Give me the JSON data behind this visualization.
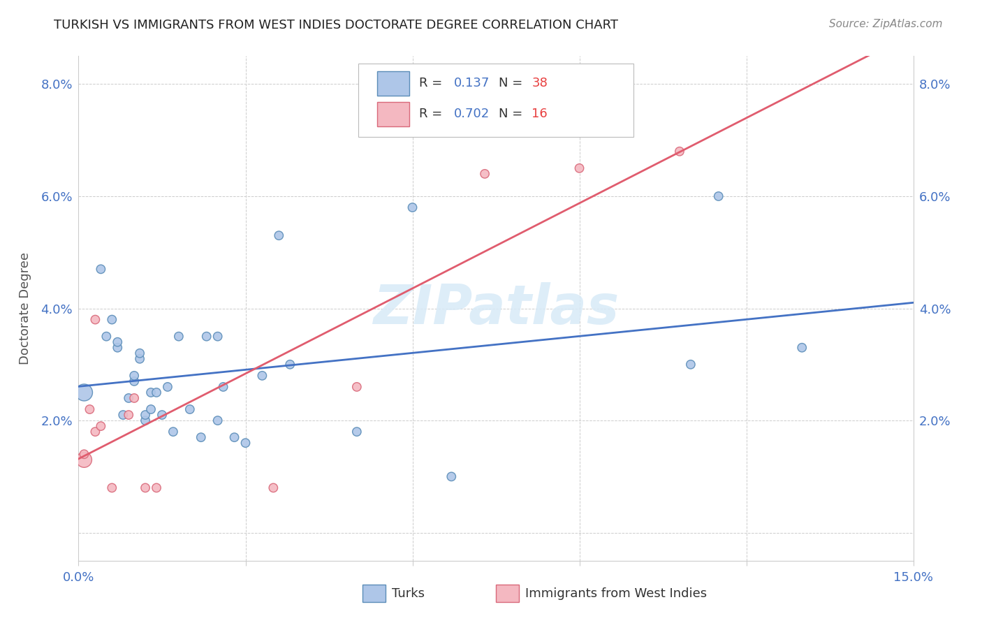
{
  "title": "TURKISH VS IMMIGRANTS FROM WEST INDIES DOCTORATE DEGREE CORRELATION CHART",
  "source": "Source: ZipAtlas.com",
  "ylabel": "Doctorate Degree",
  "xlim": [
    0.0,
    0.15
  ],
  "ylim": [
    -0.005,
    0.085
  ],
  "xticks": [
    0.0,
    0.03,
    0.06,
    0.09,
    0.12,
    0.15
  ],
  "xticklabels": [
    "0.0%",
    "",
    "",
    "",
    "",
    "15.0%"
  ],
  "yticks": [
    0.0,
    0.02,
    0.04,
    0.06,
    0.08
  ],
  "yticklabels": [
    "",
    "2.0%",
    "4.0%",
    "6.0%",
    "8.0%"
  ],
  "turks_R": 0.137,
  "turks_N": 38,
  "west_indies_R": 0.702,
  "west_indies_N": 16,
  "turks_color": "#aec6e8",
  "turks_edge_color": "#5b8db8",
  "west_indies_color": "#f4b8c1",
  "west_indies_edge_color": "#d9697a",
  "trendline_turks_color": "#4472c4",
  "trendline_wi_color": "#e05c6e",
  "watermark": "ZIPatlas",
  "turks_x": [
    0.001,
    0.004,
    0.005,
    0.006,
    0.007,
    0.007,
    0.008,
    0.009,
    0.01,
    0.01,
    0.011,
    0.011,
    0.012,
    0.012,
    0.013,
    0.013,
    0.014,
    0.015,
    0.016,
    0.017,
    0.018,
    0.02,
    0.022,
    0.023,
    0.025,
    0.025,
    0.026,
    0.028,
    0.03,
    0.033,
    0.036,
    0.038,
    0.05,
    0.06,
    0.067,
    0.11,
    0.115,
    0.13
  ],
  "turks_y": [
    0.025,
    0.047,
    0.035,
    0.038,
    0.033,
    0.034,
    0.021,
    0.024,
    0.027,
    0.028,
    0.031,
    0.032,
    0.02,
    0.021,
    0.025,
    0.022,
    0.025,
    0.021,
    0.026,
    0.018,
    0.035,
    0.022,
    0.017,
    0.035,
    0.02,
    0.035,
    0.026,
    0.017,
    0.016,
    0.028,
    0.053,
    0.03,
    0.018,
    0.058,
    0.01,
    0.03,
    0.06,
    0.033
  ],
  "wi_x": [
    0.001,
    0.001,
    0.002,
    0.003,
    0.003,
    0.004,
    0.006,
    0.009,
    0.01,
    0.012,
    0.014,
    0.035,
    0.05,
    0.073,
    0.09,
    0.108
  ],
  "wi_y": [
    0.013,
    0.014,
    0.022,
    0.018,
    0.038,
    0.019,
    0.008,
    0.021,
    0.024,
    0.008,
    0.008,
    0.008,
    0.026,
    0.064,
    0.065,
    0.068
  ],
  "turks_sizes": [
    300,
    80,
    80,
    80,
    80,
    80,
    80,
    80,
    80,
    80,
    80,
    80,
    80,
    80,
    80,
    80,
    80,
    80,
    80,
    80,
    80,
    80,
    80,
    80,
    80,
    80,
    80,
    80,
    80,
    80,
    80,
    80,
    80,
    80,
    80,
    80,
    80,
    80
  ],
  "wi_sizes": [
    250,
    80,
    80,
    80,
    80,
    80,
    80,
    80,
    80,
    80,
    80,
    80,
    80,
    80,
    80,
    80
  ]
}
